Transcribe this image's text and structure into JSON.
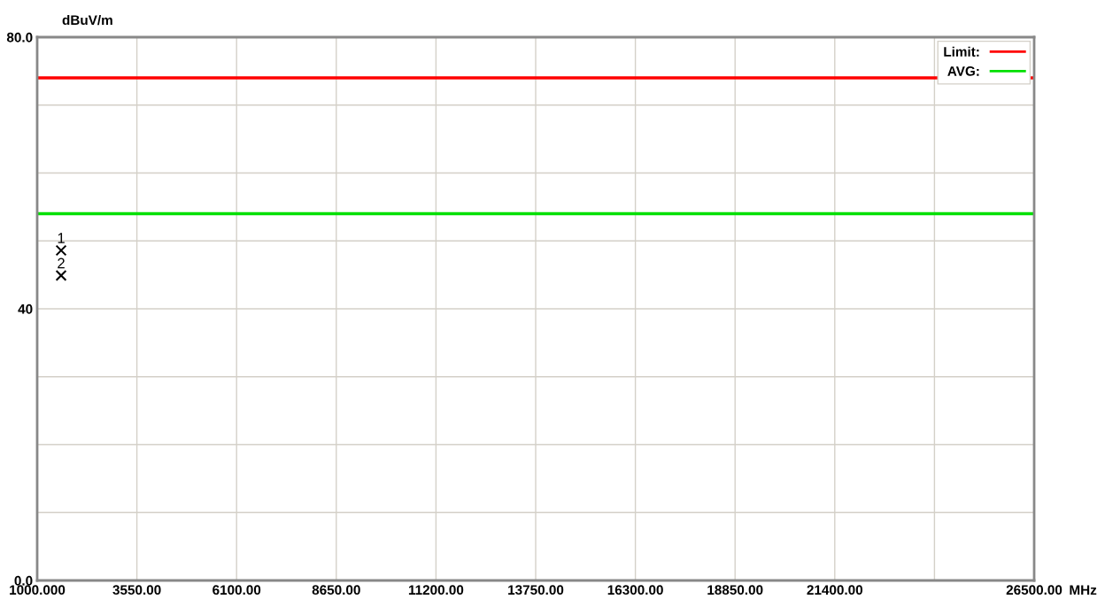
{
  "chart_data": {
    "type": "line",
    "ylabel": "dBuV/m",
    "xlabel": "MHz",
    "series": [
      {
        "name": "Limit:",
        "color": "#ff0000",
        "x": [
          1000,
          26500
        ],
        "values": [
          74,
          74
        ]
      },
      {
        "name": "AVG:",
        "color": "#00e000",
        "x": [
          1000,
          26500
        ],
        "values": [
          54,
          54
        ]
      },
      {
        "type": "scatter",
        "color": "#000000",
        "marker": "cross",
        "x": [
          1612,
          1612
        ],
        "values": [
          48.6,
          44.9
        ]
      }
    ],
    "annotations": [
      {
        "text": "1",
        "x": 1612,
        "y": 48.6
      },
      {
        "text": "2",
        "x": 1612,
        "y": 44.9
      }
    ],
    "xlim": [
      1000,
      26500
    ],
    "xticks": [
      {
        "value": 1000,
        "label": "1000.000"
      },
      {
        "value": 3550,
        "label": "3550.00"
      },
      {
        "value": 6100,
        "label": "6100.00"
      },
      {
        "value": 8650,
        "label": "8650.00"
      },
      {
        "value": 11200,
        "label": "11200.00"
      },
      {
        "value": 13750,
        "label": "13750.00"
      },
      {
        "value": 16300,
        "label": "16300.00"
      },
      {
        "value": 18850,
        "label": "18850.00"
      },
      {
        "value": 21400,
        "label": "21400.00"
      },
      {
        "value": 23950,
        "label": null
      },
      {
        "value": 26500,
        "label": "26500.00"
      }
    ],
    "ylim": [
      0,
      80
    ],
    "yticks": [
      {
        "value": 0,
        "label": "0.0"
      },
      {
        "value": 10,
        "label": null
      },
      {
        "value": 20,
        "label": null
      },
      {
        "value": 30,
        "label": null
      },
      {
        "value": 40,
        "label": "40"
      },
      {
        "value": 50,
        "label": null
      },
      {
        "value": 60,
        "label": null
      },
      {
        "value": 70,
        "label": null
      },
      {
        "value": 80,
        "label": "80.0"
      }
    ],
    "grid": true,
    "legend": "top right"
  }
}
